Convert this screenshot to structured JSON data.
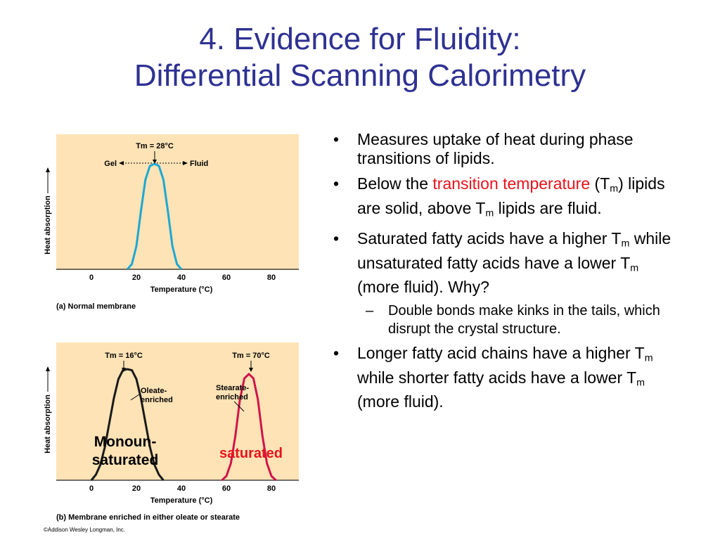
{
  "slide": {
    "title_line1": "4. Evidence for Fluidity:",
    "title_line2": "Differential Scanning Calorimetry"
  },
  "bullets": {
    "b1": "Measures uptake of heat during phase transitions of lipids.",
    "b2_pre": "Below the ",
    "b2_red": "transition temperature",
    "b2_a": " (T",
    "b2_b": ") lipids are solid, above T",
    "b2_c": " lipids are fluid.",
    "b3_a": "Saturated fatty acids have a higher T",
    "b3_b": " while unsaturated fatty acids have a lower T",
    "b3_c": " (more fluid). Why?",
    "sub1": "Double bonds make kinks in the tails, which disrupt the crystal structure.",
    "b4_a": "Longer fatty acid chains have a higher T",
    "b4_b": " while shorter fatty acids have a lower T",
    "b4_c": " (more fluid).",
    "m": "m",
    "bullet_glyph": "•",
    "dash_glyph": "–"
  },
  "credit": "©Addison Wesley Longman, Inc.",
  "chart_data": [
    {
      "type": "line",
      "caption": "(a)  Normal membrane",
      "xlabel": "Temperature (°C)",
      "ylabel": "Heat absorption",
      "xlim": [
        -20,
        90
      ],
      "xticks": [
        0,
        20,
        40,
        60,
        80
      ],
      "tm_label": "Tm = 28°C",
      "gel_label": "Gel",
      "fluid_label": "Fluid",
      "series": [
        {
          "color": "#1ca8d4",
          "tm": 28,
          "x": [
            16,
            18,
            20,
            22,
            24,
            26,
            28,
            30,
            32,
            34,
            36,
            38,
            40
          ],
          "y": [
            0,
            0.05,
            0.22,
            0.55,
            0.85,
            0.98,
            1.0,
            0.98,
            0.85,
            0.55,
            0.22,
            0.05,
            0
          ]
        }
      ]
    },
    {
      "type": "line",
      "caption": "(b)  Membrane enriched in either oleate or stearate",
      "xlabel": "Temperature (°C)",
      "ylabel": "Heat absorption",
      "xlim": [
        -20,
        90
      ],
      "xticks": [
        0,
        20,
        40,
        60,
        80
      ],
      "overlay_left": "Monoun-saturated",
      "overlay_right": "saturated",
      "series": [
        {
          "name": "Oleate-enriched",
          "color": "#1a1a1a",
          "tm": 16,
          "tm_label": "Tm = 16°C",
          "x": [
            0,
            2,
            4,
            6,
            8,
            10,
            12,
            14,
            16,
            18,
            20,
            22,
            24,
            26,
            28,
            30,
            32
          ],
          "y": [
            0,
            0.05,
            0.14,
            0.3,
            0.52,
            0.74,
            0.91,
            0.99,
            1.0,
            0.99,
            0.91,
            0.74,
            0.52,
            0.3,
            0.14,
            0.05,
            0
          ]
        },
        {
          "name": "Stearate-enriched",
          "color": "#d0144a",
          "tm": 70,
          "tm_label": "Tm = 70°C",
          "x": [
            58,
            60,
            62,
            64,
            66,
            68,
            70,
            72,
            74,
            76,
            78,
            80,
            82
          ],
          "y": [
            0,
            0.04,
            0.16,
            0.42,
            0.76,
            0.96,
            1.0,
            0.96,
            0.76,
            0.42,
            0.16,
            0.04,
            0
          ]
        }
      ]
    }
  ]
}
